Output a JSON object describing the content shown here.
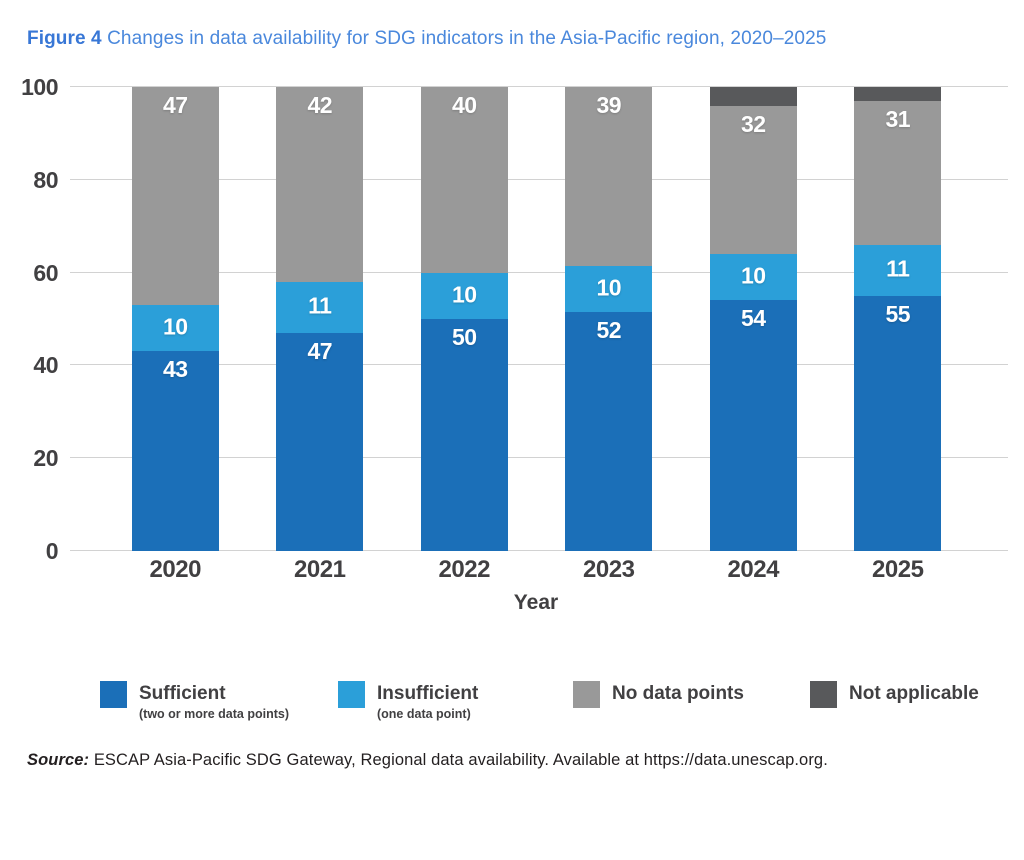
{
  "title": {
    "figure_label": "Figure 4",
    "text": " Changes in data availability for SDG indicators in the Asia-Pacific region, 2020–2025"
  },
  "chart_data": {
    "type": "bar",
    "stacked": true,
    "title": "Figure 4 Changes in data availability for SDG indicators in the Asia-Pacific region, 2020–2025",
    "categories": [
      "2020",
      "2021",
      "2022",
      "2023",
      "2024",
      "2025"
    ],
    "series": [
      {
        "name": "Sufficient",
        "sublabel": "(two or more data points)",
        "color": "#1B6FB8",
        "values": [
          43,
          47,
          50,
          52,
          54,
          55
        ],
        "show_value_labels": true,
        "label_align": "top"
      },
      {
        "name": "Insufficient",
        "sublabel": "(one data point)",
        "color": "#2B9FD9",
        "values": [
          10,
          11,
          10,
          10,
          10,
          11
        ],
        "show_value_labels": true,
        "label_align": "center"
      },
      {
        "name": "No data points",
        "sublabel": "",
        "color": "#999999",
        "values": [
          47,
          42,
          40,
          39,
          32,
          31
        ],
        "show_value_labels": true,
        "label_align": "top"
      },
      {
        "name": "Not applicable",
        "sublabel": "",
        "color": "#58595B",
        "values": [
          0,
          0,
          0,
          0,
          4,
          3
        ],
        "show_value_labels": false,
        "label_align": "top"
      }
    ],
    "xlabel": "Year",
    "ylabel": "",
    "ylim": [
      0,
      100
    ],
    "yticks": [
      0,
      20,
      40,
      60,
      80,
      100
    ],
    "grid": true,
    "legend_position": "bottom"
  },
  "source": {
    "label": "Source:",
    "text": " ESCAP Asia-Pacific SDG Gateway, Regional data availability. Available at https://data.unescap.org."
  },
  "colors": {
    "sufficient": "#1B6FB8",
    "insufficient": "#2B9FD9",
    "no_data_points": "#999999",
    "not_applicable": "#58595B",
    "title_blue": "#4A88DC",
    "axis_text": "#414042",
    "gridline": "#D2D2D2"
  }
}
